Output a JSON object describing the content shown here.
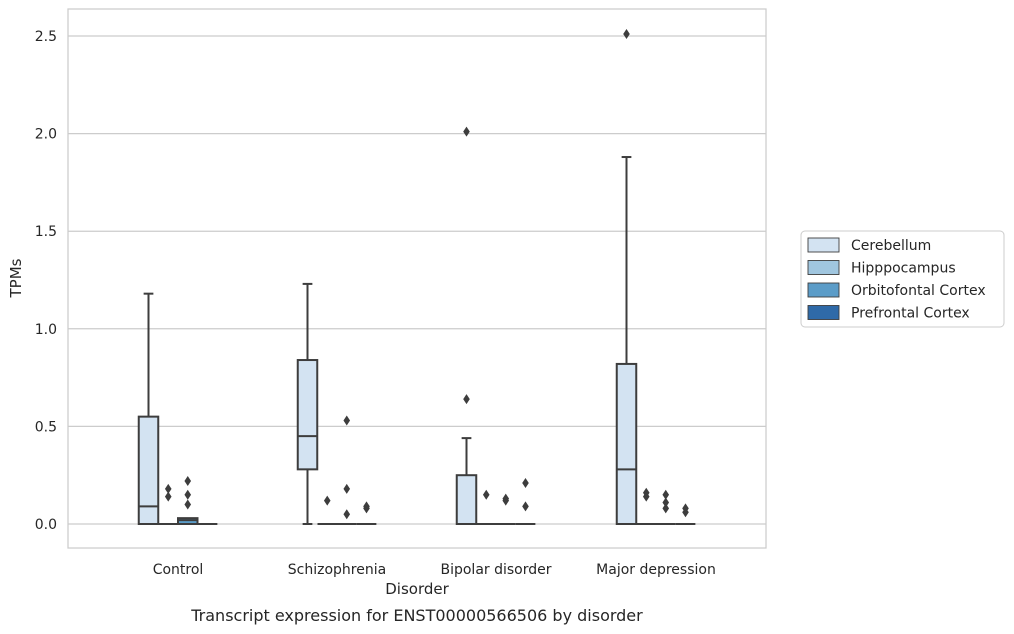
{
  "caption": "Transcript expression for ENST00000566506 by disorder",
  "chart_data": {
    "type": "box",
    "xlabel": "Disorder",
    "ylabel": "TPMs",
    "ylim": [
      -0.12,
      2.62
    ],
    "yticks": [
      0.0,
      0.5,
      1.0,
      1.5,
      2.0,
      2.5
    ],
    "ytick_labels": [
      "0.0",
      "0.5",
      "1.0",
      "1.5",
      "2.0",
      "2.5"
    ],
    "grid": "horizontal",
    "legend_placement": "right",
    "categories": [
      "Control",
      "Schizophrenia",
      "Bipolar disorder",
      "Major depression"
    ],
    "series": [
      {
        "name": "Cerebellum",
        "color": "#d3e3f2",
        "boxes": [
          {
            "min": 0,
            "q1": 0,
            "median": 0.09,
            "q3": 0.55,
            "max": 1.18,
            "outliers": []
          },
          {
            "min": 0,
            "q1": 0.28,
            "median": 0.45,
            "q3": 0.84,
            "max": 1.23,
            "outliers": []
          },
          {
            "min": 0,
            "q1": 0,
            "median": 0,
            "q3": 0.25,
            "max": 0.44,
            "outliers": [
              0.64,
              2.01
            ]
          },
          {
            "min": 0,
            "q1": 0,
            "median": 0.28,
            "q3": 0.82,
            "max": 1.88,
            "outliers": [
              2.51
            ]
          }
        ]
      },
      {
        "name": "Hipppocampus",
        "color": "#a0c6df",
        "boxes": [
          {
            "min": 0,
            "q1": 0,
            "median": 0,
            "q3": 0,
            "max": 0,
            "outliers": [
              0.14,
              0.18
            ]
          },
          {
            "min": 0,
            "q1": 0,
            "median": 0,
            "q3": 0,
            "max": 0,
            "outliers": [
              0.12
            ]
          },
          {
            "min": 0,
            "q1": 0,
            "median": 0,
            "q3": 0,
            "max": 0,
            "outliers": [
              0.15
            ]
          },
          {
            "min": 0,
            "q1": 0,
            "median": 0,
            "q3": 0,
            "max": 0,
            "outliers": [
              0.14,
              0.16
            ]
          }
        ]
      },
      {
        "name": "Orbitofontal Cortex",
        "color": "#5b9cc8",
        "boxes": [
          {
            "min": 0,
            "q1": 0,
            "median": 0.02,
            "q3": 0.03,
            "max": 0.03,
            "outliers": [
              0.1,
              0.15,
              0.22
            ]
          },
          {
            "min": 0,
            "q1": 0,
            "median": 0,
            "q3": 0,
            "max": 0,
            "outliers": [
              0.05,
              0.18,
              0.53
            ]
          },
          {
            "min": 0,
            "q1": 0,
            "median": 0,
            "q3": 0,
            "max": 0,
            "outliers": [
              0.12,
              0.13
            ]
          },
          {
            "min": 0,
            "q1": 0,
            "median": 0,
            "q3": 0,
            "max": 0,
            "outliers": [
              0.08,
              0.11,
              0.15
            ]
          }
        ]
      },
      {
        "name": "Prefrontal Cortex",
        "color": "#2f6aa8",
        "boxes": [
          {
            "min": 0,
            "q1": 0,
            "median": 0,
            "q3": 0,
            "max": 0,
            "outliers": []
          },
          {
            "min": 0,
            "q1": 0,
            "median": 0,
            "q3": 0,
            "max": 0,
            "outliers": [
              0.08,
              0.09
            ]
          },
          {
            "min": 0,
            "q1": 0,
            "median": 0,
            "q3": 0,
            "max": 0,
            "outliers": [
              0.09,
              0.21
            ]
          },
          {
            "min": 0,
            "q1": 0,
            "median": 0,
            "q3": 0,
            "max": 0,
            "outliers": [
              0.06,
              0.08
            ]
          }
        ]
      }
    ]
  }
}
